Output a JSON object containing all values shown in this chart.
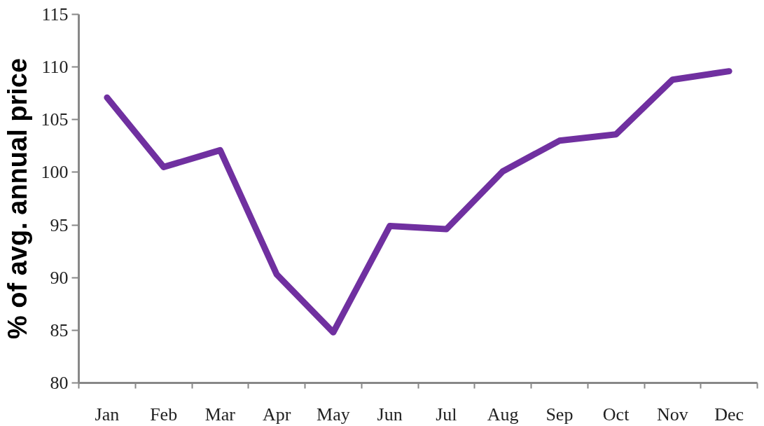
{
  "chart_data": {
    "type": "line",
    "ylabel": "% of avg. annual price",
    "categories": [
      "Jan",
      "Feb",
      "Mar",
      "Apr",
      "May",
      "Jun",
      "Jul",
      "Aug",
      "Sep",
      "Oct",
      "Nov",
      "Dec"
    ],
    "series": [
      {
        "color": "#7030a0",
        "values": [
          107.1,
          100.5,
          102.1,
          90.3,
          84.8,
          94.9,
          94.6,
          100.1,
          103.0,
          103.6,
          108.8,
          109.6
        ]
      }
    ],
    "ylim": [
      80,
      115
    ],
    "yticks": [
      80,
      85,
      90,
      95,
      100,
      105,
      110,
      115
    ],
    "grid": false,
    "marker": "none",
    "line_style": "solid"
  }
}
